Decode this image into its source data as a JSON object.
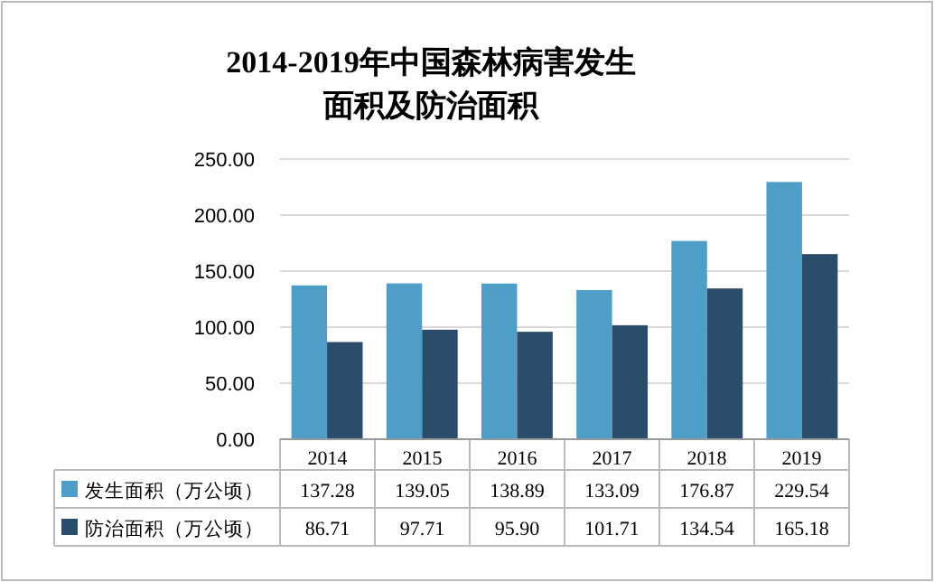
{
  "chart_data": {
    "type": "bar",
    "title": "2014-2019年中国森林病害发生面积及防治面积",
    "categories": [
      "2014",
      "2015",
      "2016",
      "2017",
      "2018",
      "2019"
    ],
    "series": [
      {
        "name": "发生面积（万公顷）",
        "color": "#4f9ec8",
        "values": [
          137.28,
          139.05,
          138.89,
          133.09,
          176.87,
          229.54
        ],
        "value_labels": [
          "137.28",
          "139.05",
          "138.89",
          "133.09",
          "176.87",
          "229.54"
        ]
      },
      {
        "name": "防治面积（万公顷）",
        "color": "#2b4d6b",
        "values": [
          86.71,
          97.71,
          95.9,
          101.71,
          134.54,
          165.18
        ],
        "value_labels": [
          "86.71",
          "97.71",
          "95.90",
          "101.71",
          "134.54",
          "165.18"
        ]
      }
    ],
    "ylim": [
      0,
      250
    ],
    "yticks": [
      {
        "value": 0,
        "label": "0.00"
      },
      {
        "value": 50,
        "label": "50.00"
      },
      {
        "value": 100,
        "label": "100.00"
      },
      {
        "value": 150,
        "label": "150.00"
      },
      {
        "value": 200,
        "label": "200.00"
      },
      {
        "value": 250,
        "label": "250.00"
      }
    ],
    "grid": true,
    "legend": "bottom"
  }
}
